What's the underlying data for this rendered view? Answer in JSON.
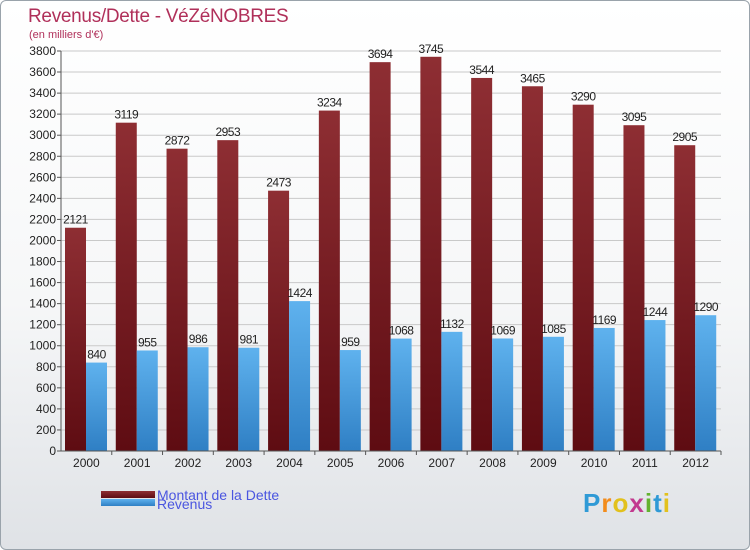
{
  "title": "Revenus/Dette - VéZéNOBRES",
  "subtitle": "(en milliers d'€)",
  "logo": {
    "letters": [
      "P",
      "r",
      "o",
      "x",
      "i",
      "t",
      "i"
    ],
    "colors": [
      "#2f9ad6",
      "#f28c1c",
      "#e2c11c",
      "#c23a8f",
      "#63b22f",
      "#2f9ad6",
      "#e2c11c"
    ]
  },
  "chart_data": {
    "type": "bar",
    "title": "Revenus/Dette - VéZéNOBRES",
    "subtitle": "(en milliers d'€)",
    "categories": [
      "2000",
      "2001",
      "2002",
      "2003",
      "2004",
      "2005",
      "2006",
      "2007",
      "2008",
      "2009",
      "2010",
      "2011",
      "2012"
    ],
    "series": [
      {
        "name": "Montant de la Dette",
        "color": "#7a1c24",
        "values": [
          2121,
          3119,
          2872,
          2953,
          2473,
          3234,
          3694,
          3745,
          3544,
          3465,
          3290,
          3095,
          2905
        ]
      },
      {
        "name": "Revenus",
        "color": "#3d93da",
        "values": [
          840,
          955,
          986,
          981,
          1424,
          959,
          1068,
          1132,
          1069,
          1085,
          1169,
          1244,
          1290
        ]
      }
    ],
    "ylim": [
      0,
      3800
    ],
    "ytick_step": 200,
    "grid": true,
    "legend_position": "bottom-left"
  }
}
